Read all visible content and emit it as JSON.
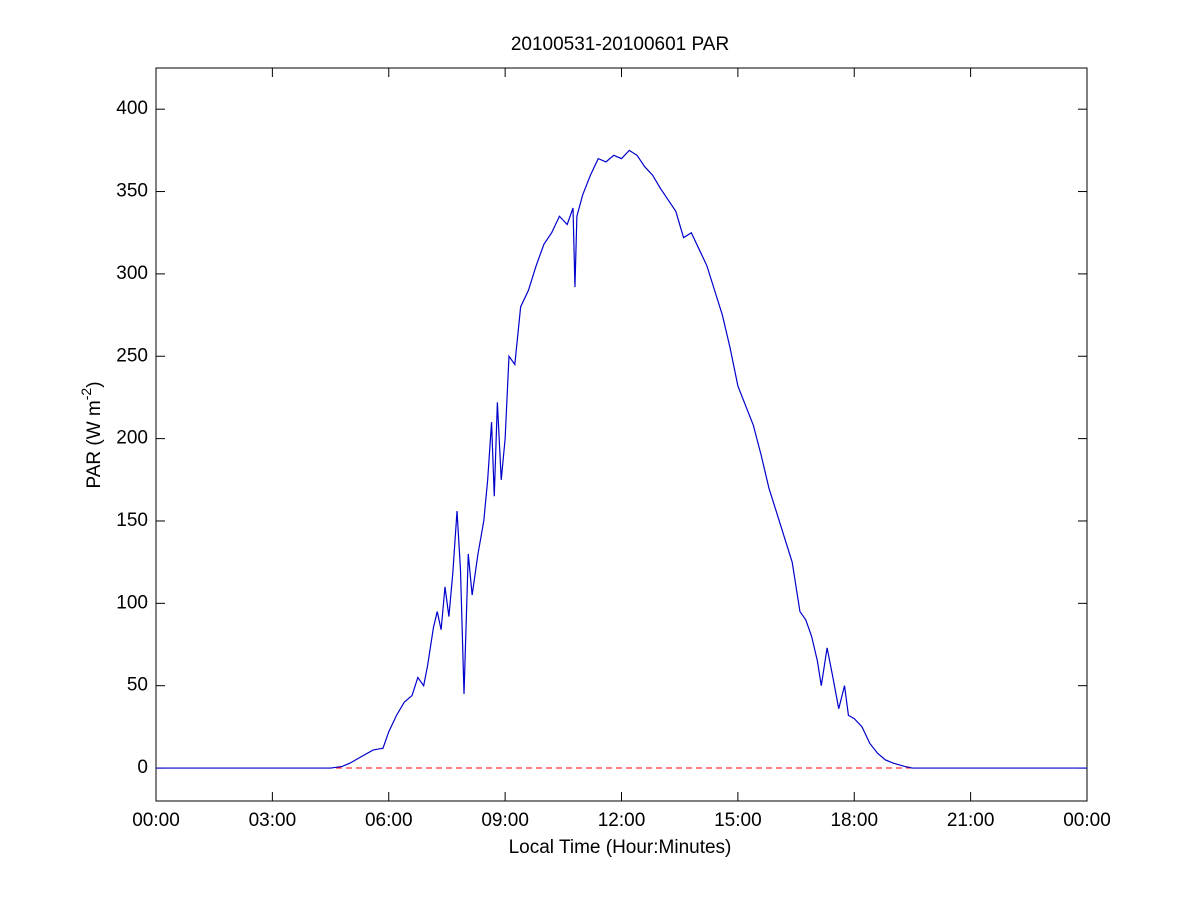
{
  "chart_data": {
    "type": "line",
    "title": "20100531-20100601 PAR",
    "x_label": "Local Time (Hour:Minutes)",
    "y_label": {
      "text": "PAR (W m",
      "superscript": "-2",
      "suffix": ")"
    },
    "x": [
      0,
      1,
      2,
      3,
      4,
      4.5,
      4.8,
      5.0,
      5.3,
      5.6,
      5.85,
      6.0,
      6.2,
      6.4,
      6.6,
      6.75,
      6.9,
      7.0,
      7.15,
      7.25,
      7.35,
      7.45,
      7.55,
      7.65,
      7.76,
      7.85,
      7.94,
      8.05,
      8.15,
      8.3,
      8.45,
      8.55,
      8.65,
      8.72,
      8.8,
      8.9,
      9.0,
      9.1,
      9.25,
      9.4,
      9.6,
      9.8,
      10.0,
      10.2,
      10.4,
      10.6,
      10.75,
      10.8,
      10.85,
      11.0,
      11.2,
      11.4,
      11.6,
      11.8,
      12.0,
      12.2,
      12.4,
      12.6,
      12.8,
      13.0,
      13.2,
      13.4,
      13.6,
      13.8,
      14.0,
      14.2,
      14.4,
      14.6,
      14.8,
      15.0,
      15.2,
      15.4,
      15.6,
      15.8,
      16.0,
      16.2,
      16.4,
      16.6,
      16.75,
      16.9,
      17.05,
      17.15,
      17.3,
      17.45,
      17.6,
      17.75,
      17.85,
      18.0,
      18.2,
      18.4,
      18.6,
      18.8,
      19.0,
      19.3,
      19.5,
      20,
      21,
      22,
      23,
      24
    ],
    "series": [
      {
        "name": "PAR",
        "color": "#0000cc",
        "values": [
          0,
          0,
          0,
          0,
          0,
          0,
          1,
          3,
          7,
          11,
          12,
          22,
          32,
          40,
          44,
          55,
          50,
          62,
          85,
          95,
          84,
          110,
          92,
          118,
          156,
          120,
          45,
          130,
          105,
          130,
          150,
          175,
          210,
          165,
          222,
          175,
          200,
          250,
          245,
          280,
          290,
          305,
          318,
          325,
          335,
          330,
          340,
          292,
          335,
          348,
          360,
          370,
          368,
          372,
          370,
          375,
          372,
          365,
          360,
          352,
          345,
          338,
          322,
          325,
          315,
          305,
          290,
          275,
          255,
          232,
          220,
          208,
          190,
          170,
          155,
          140,
          125,
          95,
          90,
          80,
          65,
          50,
          73,
          55,
          36,
          50,
          32,
          30,
          25,
          15,
          9,
          5,
          3,
          1,
          0,
          0,
          0,
          0,
          0,
          0
        ]
      }
    ],
    "reference_line": {
      "value": 0,
      "color": "#ff0000"
    },
    "xlim": [
      0,
      24
    ],
    "xticks": [
      {
        "value": 0,
        "label": "00:00"
      },
      {
        "value": 3,
        "label": "03:00"
      },
      {
        "value": 6,
        "label": "06:00"
      },
      {
        "value": 9,
        "label": "09:00"
      },
      {
        "value": 12,
        "label": "12:00"
      },
      {
        "value": 15,
        "label": "15:00"
      },
      {
        "value": 18,
        "label": "18:00"
      },
      {
        "value": 21,
        "label": "21:00"
      },
      {
        "value": 24,
        "label": "00:00"
      }
    ],
    "ylim": [
      -20,
      425
    ],
    "yticks": [
      0,
      50,
      100,
      150,
      200,
      250,
      300,
      350,
      400
    ]
  }
}
